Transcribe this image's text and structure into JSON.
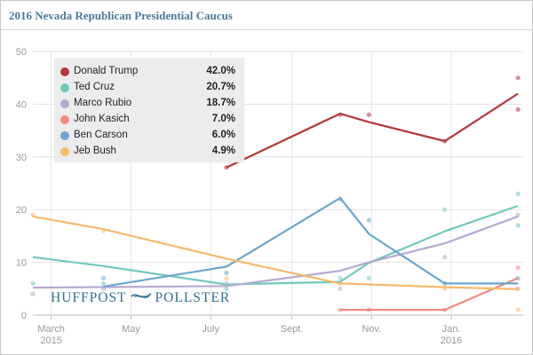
{
  "header": {
    "title": "2016 Nevada Republican Presidential Caucus"
  },
  "logo": {
    "left": "HUFFPOST",
    "right": "POLLSTER"
  },
  "chart_data": {
    "type": "line",
    "title": "2016 Nevada Republican Presidential Caucus",
    "xlabel": "",
    "ylabel": "",
    "ylim": [
      0,
      50
    ],
    "yticks": [
      "0",
      "10",
      "20",
      "30",
      "40",
      "50"
    ],
    "xticks": [
      {
        "date": "2015-03-01",
        "label": "March",
        "sub": "2015"
      },
      {
        "date": "2015-05-01",
        "label": "May",
        "sub": ""
      },
      {
        "date": "2015-07-01",
        "label": "July",
        "sub": ""
      },
      {
        "date": "2015-09-01",
        "label": "Sept.",
        "sub": ""
      },
      {
        "date": "2015-11-01",
        "label": "Nov.",
        "sub": ""
      },
      {
        "date": "2016-01-01",
        "label": "Jan.",
        "sub": "2016"
      }
    ],
    "xrange": [
      "2015-02-15",
      "2016-02-25"
    ],
    "grid": true,
    "legend_position": "top-left",
    "series": [
      {
        "name": "Donald Trump",
        "value_label": "42.0%",
        "color": "#b5373b",
        "line": [
          [
            "2015-07-13",
            28
          ],
          [
            "2015-10-08",
            38.2
          ],
          [
            "2015-10-30",
            36.6
          ],
          [
            "2015-12-27",
            33
          ],
          [
            "2016-02-21",
            42
          ]
        ],
        "points": [
          [
            "2015-07-13",
            28
          ],
          [
            "2015-10-08",
            38
          ],
          [
            "2015-10-30",
            38
          ],
          [
            "2015-12-27",
            33
          ],
          [
            "2016-02-21",
            45
          ],
          [
            "2016-02-21",
            39
          ]
        ]
      },
      {
        "name": "Ted Cruz",
        "value_label": "20.7%",
        "color": "#72c9bd",
        "line": [
          [
            "2015-02-15",
            11
          ],
          [
            "2015-04-10",
            9.3
          ],
          [
            "2015-07-13",
            5.8
          ],
          [
            "2015-10-08",
            6.3
          ],
          [
            "2015-10-30",
            9.9
          ],
          [
            "2015-12-27",
            15.9
          ],
          [
            "2016-02-21",
            20.7
          ]
        ],
        "points": [
          [
            "2015-02-15",
            6
          ],
          [
            "2015-04-10",
            6
          ],
          [
            "2015-07-13",
            5
          ],
          [
            "2015-10-08",
            7
          ],
          [
            "2015-10-30",
            7
          ],
          [
            "2015-12-27",
            20
          ],
          [
            "2016-02-21",
            23
          ],
          [
            "2016-02-21",
            17
          ]
        ]
      },
      {
        "name": "Marco Rubio",
        "value_label": "18.7%",
        "color": "#b6a9d4",
        "line": [
          [
            "2015-02-15",
            5.2
          ],
          [
            "2015-07-13",
            5.5
          ],
          [
            "2015-10-08",
            8.4
          ],
          [
            "2015-10-30",
            10
          ],
          [
            "2015-12-27",
            13.6
          ],
          [
            "2016-02-21",
            18.7
          ]
        ],
        "points": [
          [
            "2015-02-15",
            4
          ],
          [
            "2015-04-10",
            5
          ],
          [
            "2015-07-13",
            6
          ],
          [
            "2015-10-08",
            5
          ],
          [
            "2015-12-27",
            11
          ],
          [
            "2016-02-21",
            19
          ]
        ]
      },
      {
        "name": "John Kasich",
        "value_label": "7.0%",
        "color": "#f08a7e",
        "line": [
          [
            "2015-10-08",
            1
          ],
          [
            "2015-10-30",
            1
          ],
          [
            "2015-12-27",
            1
          ],
          [
            "2016-02-21",
            7
          ]
        ],
        "points": [
          [
            "2015-10-08",
            1
          ],
          [
            "2015-10-30",
            1
          ],
          [
            "2015-12-27",
            1
          ],
          [
            "2016-02-21",
            9
          ],
          [
            "2016-02-21",
            5
          ]
        ]
      },
      {
        "name": "Ben Carson",
        "value_label": "6.0%",
        "color": "#6aa6cd",
        "line": [
          [
            "2015-04-10",
            5.4
          ],
          [
            "2015-07-13",
            9.2
          ],
          [
            "2015-10-08",
            22.2
          ],
          [
            "2015-10-30",
            15.4
          ],
          [
            "2015-12-27",
            6
          ],
          [
            "2016-02-21",
            6
          ]
        ],
        "points": [
          [
            "2015-04-10",
            7
          ],
          [
            "2015-07-13",
            8
          ],
          [
            "2015-10-08",
            22
          ],
          [
            "2015-10-30",
            18
          ],
          [
            "2015-12-27",
            6
          ],
          [
            "2016-02-21",
            7
          ]
        ]
      },
      {
        "name": "Jeb Bush",
        "value_label": "4.9%",
        "color": "#f7b96c",
        "line": [
          [
            "2015-02-15",
            18.7
          ],
          [
            "2015-04-10",
            16.3
          ],
          [
            "2015-07-13",
            10.7
          ],
          [
            "2015-10-08",
            6
          ],
          [
            "2015-12-27",
            5.3
          ],
          [
            "2016-02-21",
            4.9
          ]
        ],
        "points": [
          [
            "2015-02-15",
            19
          ],
          [
            "2015-04-10",
            16
          ],
          [
            "2015-07-13",
            7
          ],
          [
            "2015-10-08",
            6
          ],
          [
            "2015-12-27",
            5
          ],
          [
            "2016-02-21",
            1
          ]
        ]
      }
    ]
  }
}
